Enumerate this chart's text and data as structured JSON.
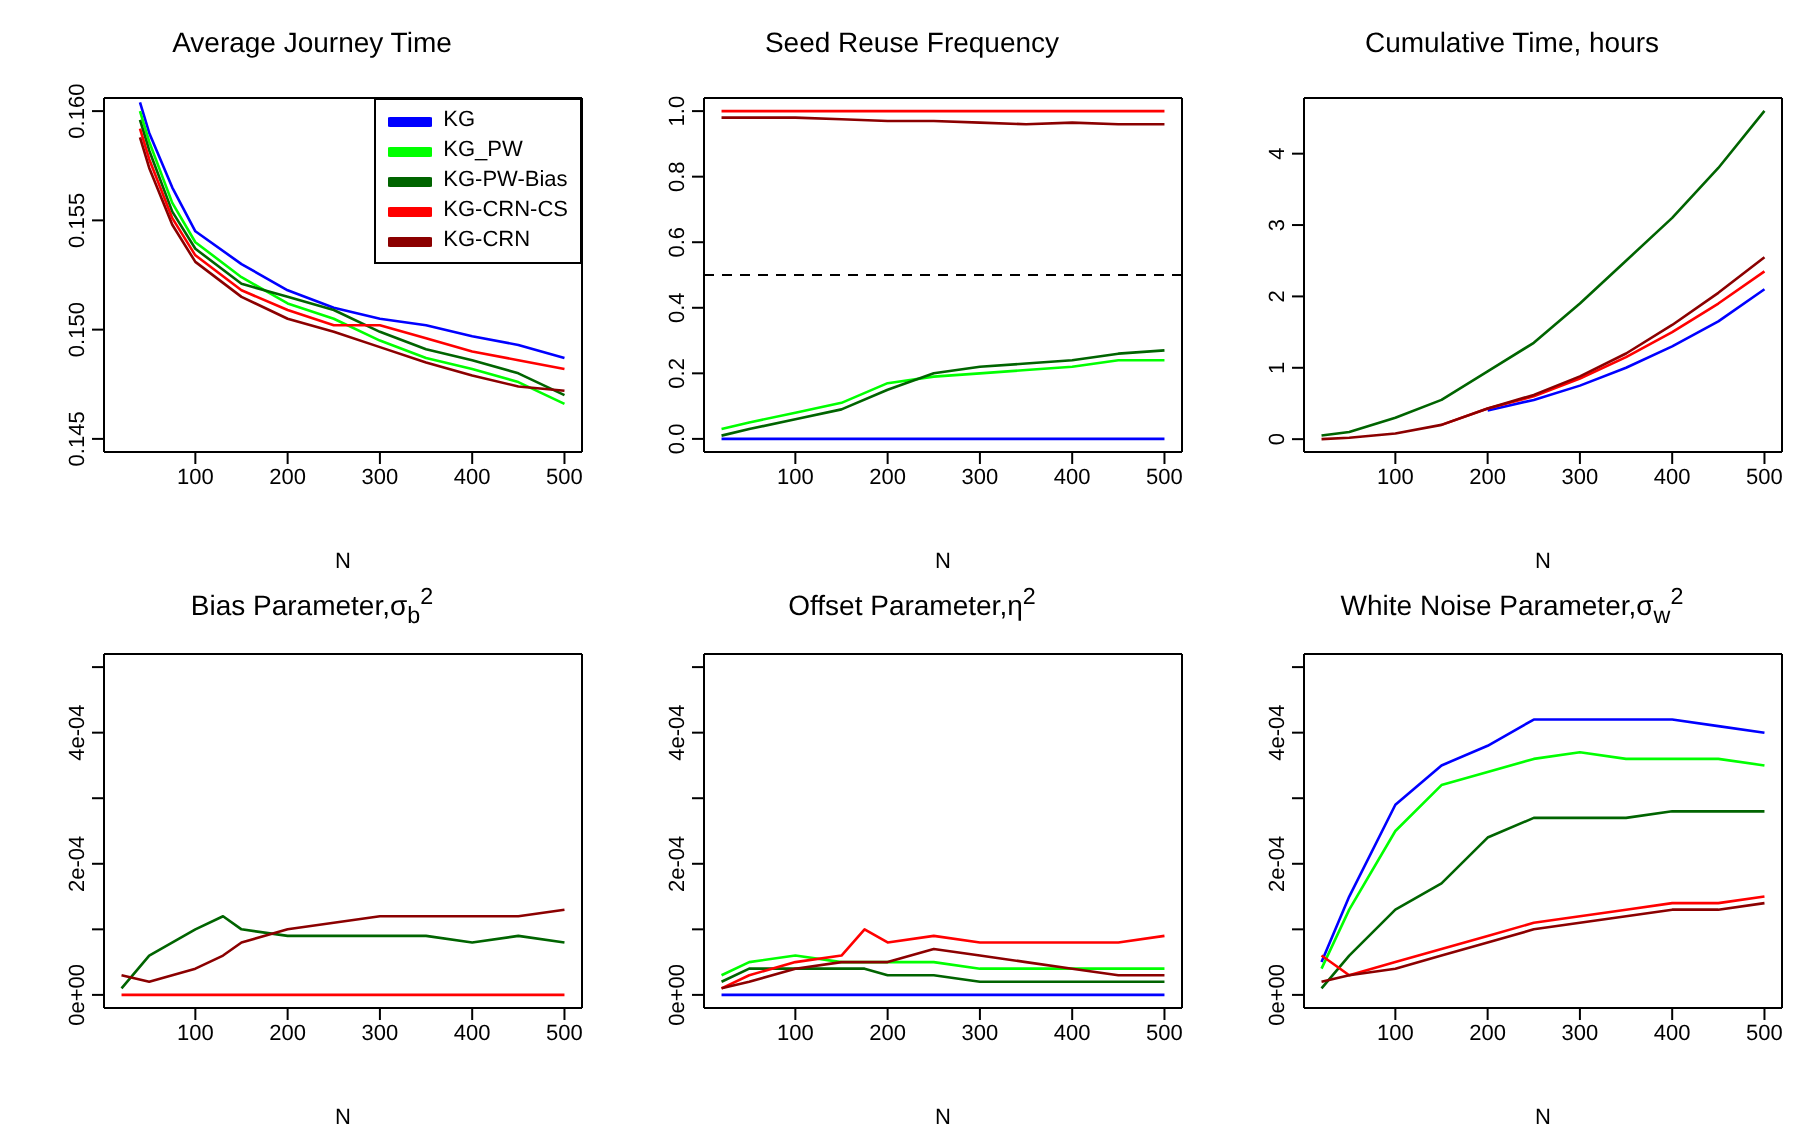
{
  "chart_data": [
    {
      "type": "line",
      "title": "Average Journey Time",
      "xlabel": "N",
      "x": [
        40,
        50,
        75,
        100,
        150,
        200,
        250,
        300,
        350,
        400,
        450,
        500
      ],
      "xlim": [
        1,
        519
      ],
      "xticks": [
        100,
        200,
        300,
        400,
        500
      ],
      "ylim": [
        0.1444,
        0.1606
      ],
      "yticks": [
        0.145,
        {
          "value": 0.15,
          "label": "0.150"
        },
        0.155,
        {
          "value": 0.16,
          "label": "0.160"
        }
      ],
      "legend": "top right",
      "series": [
        {
          "name": "KG",
          "color": "#0000ff",
          "values": [
            0.1604,
            0.159,
            0.1565,
            0.1545,
            0.153,
            0.1518,
            0.151,
            0.1505,
            0.1502,
            0.1497,
            0.1493,
            0.1487
          ]
        },
        {
          "name": "KG_PW",
          "color": "#00ff00",
          "values": [
            0.16,
            0.1586,
            0.1558,
            0.154,
            0.1524,
            0.1512,
            0.1505,
            0.1495,
            0.1487,
            0.1482,
            0.1476,
            0.1466
          ]
        },
        {
          "name": "KG-PW-Bias",
          "color": "#006400",
          "values": [
            0.1596,
            0.1582,
            0.1554,
            0.1537,
            0.1521,
            0.1515,
            0.1509,
            0.1499,
            0.1491,
            0.1486,
            0.148,
            0.147
          ]
        },
        {
          "name": "KG-CRN-CS",
          "color": "#ff0000",
          "values": [
            0.1592,
            0.1578,
            0.1551,
            0.1534,
            0.1518,
            0.1509,
            0.1502,
            0.1502,
            0.1496,
            0.149,
            0.1486,
            0.1482
          ]
        },
        {
          "name": "KG-CRN",
          "color": "#8b0000",
          "values": [
            0.1588,
            0.1574,
            0.1548,
            0.1531,
            0.1515,
            0.1505,
            0.1499,
            0.1492,
            0.1485,
            0.1479,
            0.1474,
            0.1472
          ]
        }
      ]
    },
    {
      "type": "line",
      "title": "Seed Reuse Frequency",
      "xlabel": "N",
      "x": [
        20,
        50,
        100,
        150,
        200,
        250,
        300,
        350,
        400,
        450,
        500
      ],
      "xlim": [
        1,
        519
      ],
      "xticks": [
        100,
        200,
        300,
        400,
        500
      ],
      "ylim": [
        -0.04,
        1.04
      ],
      "yticks": [
        {
          "value": 0,
          "label": "0.0"
        },
        0.2,
        0.4,
        0.6,
        0.8,
        {
          "value": 1,
          "label": "1.0"
        }
      ],
      "ref_lines": [
        {
          "axis": "y",
          "value": 0.5,
          "color": "#000000",
          "line_style": "dashed"
        }
      ],
      "series": [
        {
          "color": "#0000ff",
          "values": [
            0,
            0,
            0,
            0,
            0,
            0,
            0,
            0,
            0,
            0,
            0
          ]
        },
        {
          "color": "#00ff00",
          "values": [
            0.03,
            0.05,
            0.08,
            0.11,
            0.17,
            0.19,
            0.2,
            0.21,
            0.22,
            0.24,
            0.24
          ]
        },
        {
          "color": "#006400",
          "values": [
            0.01,
            0.03,
            0.06,
            0.09,
            0.15,
            0.2,
            0.22,
            0.23,
            0.24,
            0.26,
            0.27
          ]
        },
        {
          "color": "#ff0000",
          "values": [
            1,
            1,
            1,
            1,
            1,
            1,
            1,
            1,
            1,
            1,
            1
          ]
        },
        {
          "color": "#8b0000",
          "values": [
            0.98,
            0.98,
            0.98,
            0.975,
            0.97,
            0.97,
            0.965,
            0.96,
            0.965,
            0.96,
            0.96
          ]
        }
      ]
    },
    {
      "type": "line",
      "title": "Cumulative Time, hours",
      "xlabel": "N",
      "x": [
        20,
        50,
        100,
        150,
        200,
        250,
        300,
        350,
        400,
        450,
        500
      ],
      "xlim": [
        1,
        519
      ],
      "xticks": [
        100,
        200,
        300,
        400,
        500
      ],
      "ylim": [
        -0.18,
        4.78
      ],
      "yticks": [
        0,
        1,
        2,
        3,
        4
      ],
      "series": [
        {
          "color": "#0000ff",
          "values": [
            null,
            null,
            null,
            null,
            0.4,
            0.55,
            0.75,
            1.0,
            1.3,
            1.65,
            2.1
          ]
        },
        {
          "color": "#006400",
          "values": [
            0.05,
            0.1,
            0.3,
            0.55,
            0.95,
            1.35,
            1.9,
            2.5,
            3.1,
            3.8,
            4.6
          ]
        },
        {
          "color": "#ff0000",
          "values": [
            null,
            null,
            null,
            0.2,
            0.43,
            0.6,
            0.85,
            1.15,
            1.5,
            1.9,
            2.35
          ]
        },
        {
          "color": "#8b0000",
          "values": [
            0,
            0.02,
            0.08,
            0.2,
            0.43,
            0.62,
            0.88,
            1.2,
            1.6,
            2.05,
            2.55
          ]
        }
      ]
    },
    {
      "type": "line",
      "title": "Bias Parameter,σ$_{b}$$^{2}$",
      "xlabel": "N",
      "x": [
        20,
        50,
        100,
        130,
        150,
        200,
        250,
        300,
        350,
        400,
        450,
        500
      ],
      "xlim": [
        1,
        519
      ],
      "xticks": [
        100,
        200,
        300,
        400,
        500
      ],
      "ylim": [
        -2e-05,
        0.00052
      ],
      "yticks": [
        {
          "value": 0,
          "label": "0e+00"
        },
        {
          "value": 0.0001,
          "label": null
        },
        {
          "value": 0.0002,
          "label": "2e-04"
        },
        {
          "value": 0.0003,
          "label": null
        },
        {
          "value": 0.0004,
          "label": "4e-04"
        },
        {
          "value": 0.0005,
          "label": null
        }
      ],
      "series": [
        {
          "color": "#ff0000",
          "values": [
            0,
            0,
            0,
            0,
            0,
            0,
            0,
            0,
            0,
            0,
            0,
            0
          ]
        },
        {
          "color": "#006400",
          "values": [
            1e-05,
            6e-05,
            0.0001,
            0.00012,
            0.0001,
            9e-05,
            9e-05,
            9e-05,
            9e-05,
            8e-05,
            9e-05,
            8e-05
          ]
        },
        {
          "color": "#8b0000",
          "values": [
            3e-05,
            2e-05,
            4e-05,
            6e-05,
            8e-05,
            0.0001,
            0.00011,
            0.00012,
            0.00012,
            0.00012,
            0.00012,
            0.00013
          ]
        }
      ]
    },
    {
      "type": "line",
      "title": "Offset Parameter,η$^{2}$",
      "xlabel": "N",
      "x": [
        20,
        50,
        100,
        150,
        175,
        200,
        250,
        300,
        350,
        400,
        450,
        500
      ],
      "xlim": [
        1,
        519
      ],
      "xticks": [
        100,
        200,
        300,
        400,
        500
      ],
      "ylim": [
        -2e-05,
        0.00052
      ],
      "yticks": [
        {
          "value": 0,
          "label": "0e+00"
        },
        {
          "value": 0.0001,
          "label": null
        },
        {
          "value": 0.0002,
          "label": "2e-04"
        },
        {
          "value": 0.0003,
          "label": null
        },
        {
          "value": 0.0004,
          "label": "4e-04"
        },
        {
          "value": 0.0005,
          "label": null
        }
      ],
      "series": [
        {
          "color": "#0000ff",
          "values": [
            0,
            0,
            0,
            0,
            0,
            0,
            0,
            0,
            0,
            0,
            0,
            0
          ]
        },
        {
          "color": "#00ff00",
          "values": [
            3e-05,
            5e-05,
            6e-05,
            5e-05,
            5e-05,
            5e-05,
            5e-05,
            4e-05,
            4e-05,
            4e-05,
            4e-05,
            4e-05
          ]
        },
        {
          "color": "#006400",
          "values": [
            2e-05,
            4e-05,
            4e-05,
            4e-05,
            4e-05,
            3e-05,
            3e-05,
            2e-05,
            2e-05,
            2e-05,
            2e-05,
            2e-05
          ]
        },
        {
          "color": "#ff0000",
          "values": [
            1e-05,
            3e-05,
            5e-05,
            6e-05,
            0.0001,
            8e-05,
            9e-05,
            8e-05,
            8e-05,
            8e-05,
            8e-05,
            9e-05
          ]
        },
        {
          "color": "#8b0000",
          "values": [
            1e-05,
            2e-05,
            4e-05,
            5e-05,
            5e-05,
            5e-05,
            7e-05,
            6e-05,
            5e-05,
            4e-05,
            3e-05,
            3e-05
          ]
        }
      ]
    },
    {
      "type": "line",
      "title": "White Noise Parameter,σ$_{w}$$^{2}$",
      "xlabel": "N",
      "x": [
        20,
        50,
        100,
        150,
        200,
        250,
        300,
        350,
        400,
        450,
        500
      ],
      "xlim": [
        1,
        519
      ],
      "xticks": [
        100,
        200,
        300,
        400,
        500
      ],
      "ylim": [
        -2e-05,
        0.00052
      ],
      "yticks": [
        {
          "value": 0,
          "label": "0e+00"
        },
        {
          "value": 0.0001,
          "label": null
        },
        {
          "value": 0.0002,
          "label": "2e-04"
        },
        {
          "value": 0.0003,
          "label": null
        },
        {
          "value": 0.0004,
          "label": "4e-04"
        },
        {
          "value": 0.0005,
          "label": null
        }
      ],
      "series": [
        {
          "color": "#0000ff",
          "values": [
            5e-05,
            0.00015,
            0.00029,
            0.00035,
            0.00038,
            0.00042,
            0.00042,
            0.00042,
            0.00042,
            0.00041,
            0.0004
          ]
        },
        {
          "color": "#00ff00",
          "values": [
            4e-05,
            0.00013,
            0.00025,
            0.00032,
            0.00034,
            0.00036,
            0.00037,
            0.00036,
            0.00036,
            0.00036,
            0.00035
          ]
        },
        {
          "color": "#006400",
          "values": [
            1e-05,
            6e-05,
            0.00013,
            0.00017,
            0.00024,
            0.00027,
            0.00027,
            0.00027,
            0.00028,
            0.00028,
            0.00028
          ]
        },
        {
          "color": "#ff0000",
          "values": [
            6e-05,
            3e-05,
            5e-05,
            7e-05,
            9e-05,
            0.00011,
            0.00012,
            0.00013,
            0.00014,
            0.00014,
            0.00015
          ]
        },
        {
          "color": "#8b0000",
          "values": [
            2e-05,
            3e-05,
            4e-05,
            6e-05,
            8e-05,
            0.0001,
            0.00011,
            0.00012,
            0.00013,
            0.00013,
            0.00014
          ]
        }
      ]
    }
  ]
}
